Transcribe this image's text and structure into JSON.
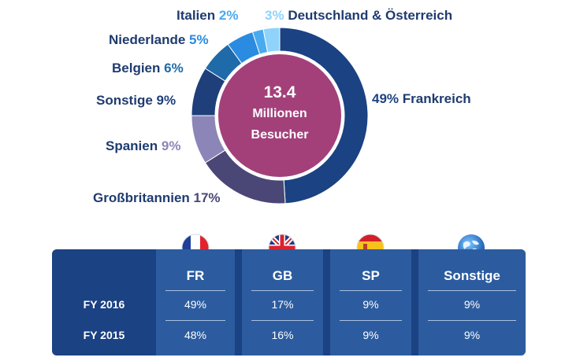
{
  "chart_data": {
    "type": "pie",
    "center": {
      "value": "13.4",
      "line1": "Millionen",
      "line2": "Besucher"
    },
    "slices": [
      {
        "name": "Frankreich",
        "value": 49,
        "label": "49%",
        "color": "#1b4282"
      },
      {
        "name": "Großbritannien",
        "value": 17,
        "label": "17%",
        "color": "#4a4777"
      },
      {
        "name": "Spanien",
        "value": 9,
        "label": "9%",
        "color": "#8c86b8"
      },
      {
        "name": "Sonstige",
        "value": 9,
        "label": "9%",
        "color": "#1e3f7a"
      },
      {
        "name": "Belgien",
        "value": 6,
        "label": "6%",
        "color": "#1f6aa8"
      },
      {
        "name": "Niederlande",
        "value": 5,
        "label": "5%",
        "color": "#2b8be0"
      },
      {
        "name": "Italien",
        "value": 2,
        "label": "2%",
        "color": "#4aaaf0"
      },
      {
        "name": "Deutschland & Österreich",
        "value": 3,
        "label": "3%",
        "color": "#8fd3fb"
      }
    ]
  },
  "labels": {
    "frankreich": {
      "pct": "49%",
      "name": "Frankreich",
      "pct_color": "#1b4282"
    },
    "grossbritannien": {
      "pct": "17%",
      "name": "Großbritannien",
      "pct_color": "#4a4777"
    },
    "spanien": {
      "pct": "9%",
      "name": "Spanien",
      "pct_color": "#8c86b8"
    },
    "sonstige": {
      "pct": "9%",
      "name": "Sonstige",
      "pct_color": "#1e3f7a"
    },
    "belgien": {
      "pct": "6%",
      "name": "Belgien",
      "pct_color": "#1f6aa8"
    },
    "niederlande": {
      "pct": "5%",
      "name": "Niederlande",
      "pct_color": "#2b8be0"
    },
    "italien": {
      "pct": "2%",
      "name": "Italien",
      "pct_color": "#4aaaf0"
    },
    "deutschland": {
      "pct": "3%",
      "name": "Deutschland & Österreich",
      "pct_color": "#8fd3fb"
    }
  },
  "table": {
    "columns": [
      {
        "code": "FR",
        "flag": "france-flag-icon",
        "fy2016": "49%",
        "fy2015": "48%"
      },
      {
        "code": "GB",
        "flag": "uk-flag-icon",
        "fy2016": "17%",
        "fy2015": "16%"
      },
      {
        "code": "SP",
        "flag": "spain-flag-icon",
        "fy2016": "9%",
        "fy2015": "9%"
      },
      {
        "code": "Sonstige",
        "flag": "globe-icon",
        "fy2016": "9%",
        "fy2015": "9%"
      }
    ],
    "rows": {
      "fy2016": "FY 2016",
      "fy2015": "FY 2015"
    }
  },
  "colors": {
    "center": "#a3407a",
    "table_bg": "#1b4282",
    "table_col": "#2c5c9f",
    "label_text": "#1f3b70"
  }
}
